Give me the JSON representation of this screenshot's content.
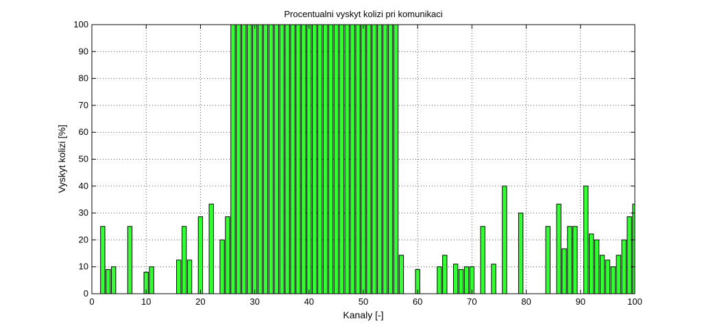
{
  "chart_data": {
    "type": "bar",
    "title": "Procentualni vyskyt kolizi pri komunikaci",
    "xlabel": "Kanaly [-]",
    "ylabel": "Vyskyt kolizi [%]",
    "xlim": [
      0,
      100
    ],
    "ylim": [
      0,
      100
    ],
    "xticks": [
      "0",
      "10",
      "20",
      "30",
      "40",
      "50",
      "60",
      "70",
      "80",
      "90",
      "100"
    ],
    "yticks": [
      "0",
      "10",
      "20",
      "30",
      "40",
      "50",
      "60",
      "70",
      "80",
      "90",
      "100"
    ],
    "grid": true,
    "bar_color": "#33ff33",
    "x": [
      2,
      3,
      4,
      7,
      10,
      11,
      16,
      17,
      18,
      20,
      22,
      24,
      25,
      26,
      27,
      28,
      29,
      30,
      31,
      32,
      33,
      34,
      35,
      36,
      37,
      38,
      39,
      40,
      41,
      42,
      43,
      44,
      45,
      46,
      47,
      48,
      49,
      50,
      51,
      52,
      53,
      54,
      55,
      56,
      57,
      60,
      64,
      65,
      67,
      68,
      69,
      70,
      72,
      74,
      76,
      79,
      84,
      86,
      87,
      88,
      89,
      91,
      92,
      93,
      94,
      95,
      96,
      97,
      98,
      99,
      100
    ],
    "values": [
      25,
      9,
      10,
      25,
      8,
      10,
      12.5,
      25,
      12.5,
      28.6,
      33.3,
      20,
      28.6,
      100,
      100,
      100,
      100,
      100,
      100,
      100,
      100,
      100,
      100,
      100,
      100,
      100,
      100,
      100,
      100,
      100,
      100,
      100,
      100,
      100,
      100,
      100,
      100,
      100,
      100,
      100,
      100,
      100,
      100,
      100,
      14.3,
      9,
      10,
      14.3,
      11,
      9,
      10,
      10,
      25,
      11,
      40,
      30,
      25,
      33.3,
      16.7,
      25,
      25,
      40,
      22.2,
      20,
      14.3,
      12.5,
      10,
      14.3,
      20,
      28.6,
      33.3
    ]
  }
}
